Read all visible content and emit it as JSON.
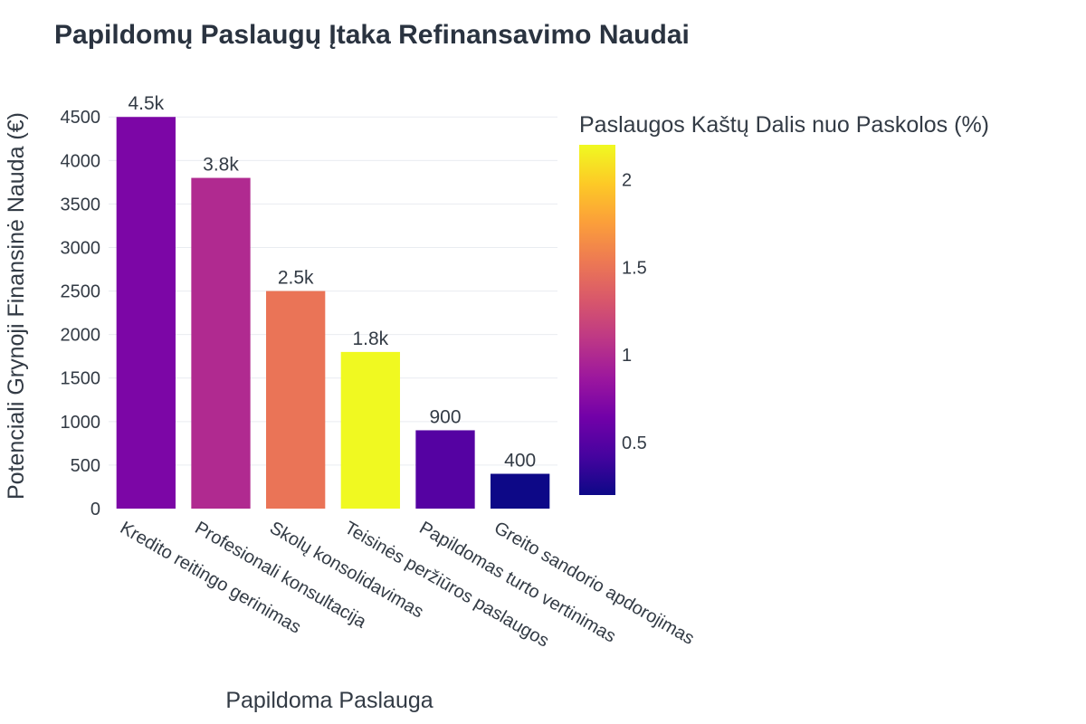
{
  "chart_data": {
    "type": "bar",
    "title": "Papildomų Paslaugų Įtaka Refinansavimo Naudai",
    "xlabel": "Papildoma Paslauga",
    "ylabel": "Potenciali Grynoji Finansinė Nauda (€)",
    "categories": [
      "Kredito reitingo gerinimas",
      "Profesionali konsultacija",
      "Skolų konsolidavimas",
      "Teisinės peržiūros paslaugos",
      "Papildomas turto vertinimas",
      "Greito sandorio apdorojimas"
    ],
    "values": [
      4500,
      3800,
      2500,
      1800,
      900,
      400
    ],
    "data_labels": [
      "4.5k",
      "3.8k",
      "2.5k",
      "1.8k",
      "900",
      "400"
    ],
    "color_values": [
      0.7,
      1.0,
      1.5,
      2.2,
      0.5,
      0.2
    ],
    "ylim": [
      0,
      4700
    ],
    "yticks": [
      0,
      500,
      1000,
      1500,
      2000,
      2500,
      3000,
      3500,
      4000,
      4500
    ],
    "grid": true,
    "colorbar": {
      "title": "Paslaugos Kaštų Dalis nuo Paskolos (%)",
      "range": [
        0.2,
        2.2
      ],
      "ticks": [
        0.5,
        1,
        1.5,
        2
      ],
      "tick_labels": [
        "0.5",
        "1",
        "1.5",
        "2"
      ],
      "colorscale": [
        "#0d0887",
        "#46039f",
        "#7201a8",
        "#9c179e",
        "#bd3786",
        "#d8576b",
        "#ed7953",
        "#fb9f3a",
        "#fdca26",
        "#f0f921"
      ]
    }
  }
}
